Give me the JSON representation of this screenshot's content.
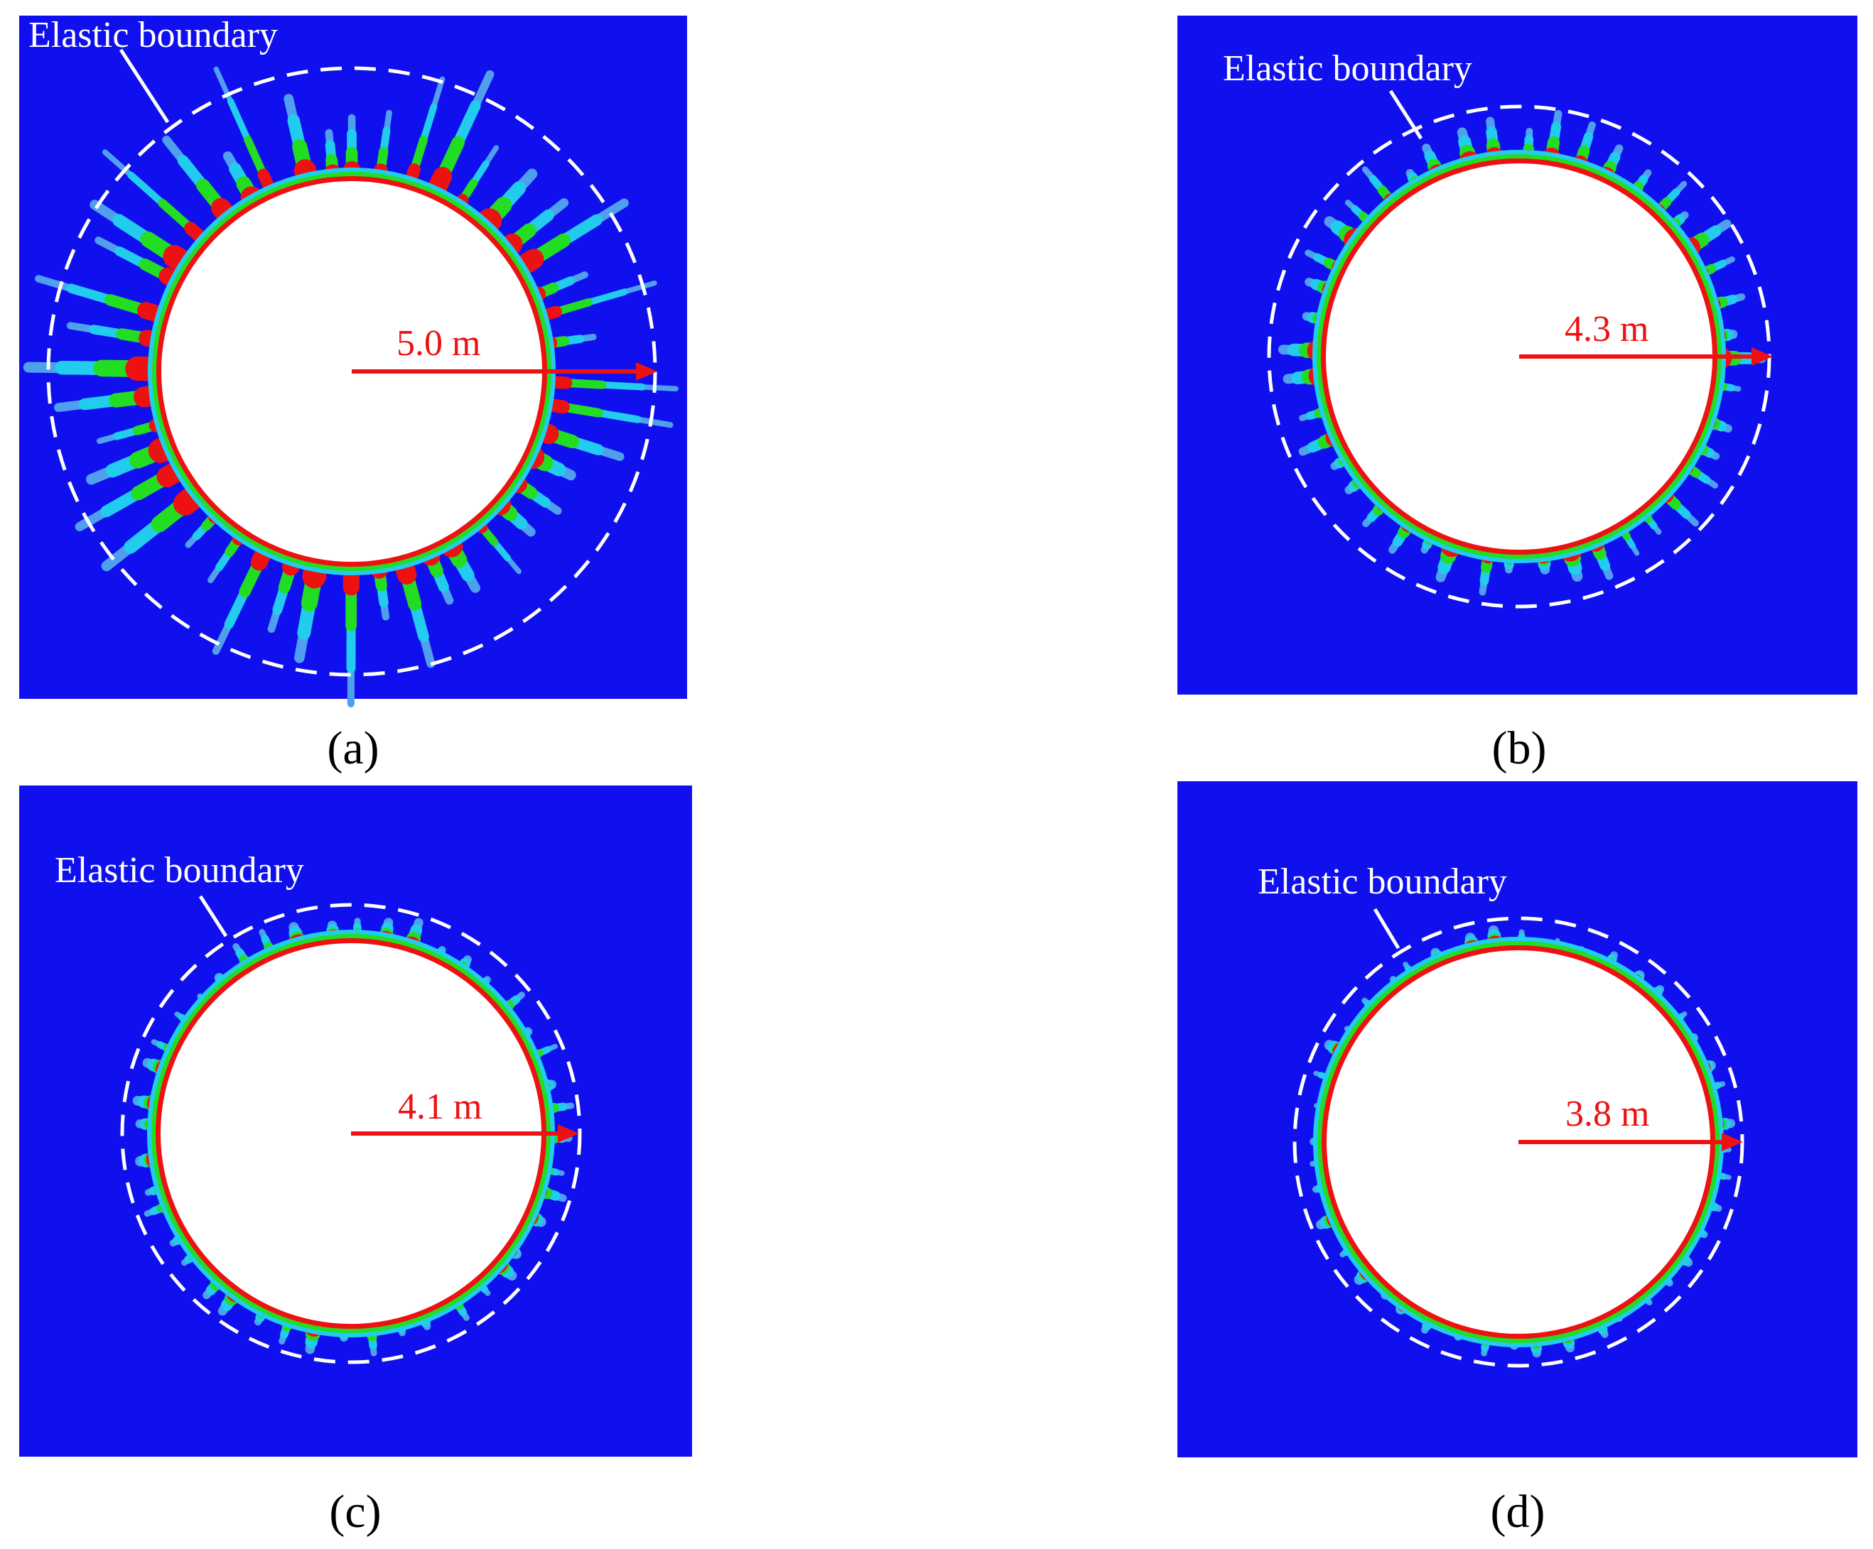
{
  "panels": [
    {
      "id": "a",
      "caption": "(a)",
      "boundary_label": "Elastic boundary",
      "radius_label": "5.0 m",
      "radius_value": 5.0,
      "ray_intensity": 1.0
    },
    {
      "id": "b",
      "caption": "(b)",
      "boundary_label": "Elastic boundary",
      "radius_label": "4.3 m",
      "radius_value": 4.3,
      "ray_intensity": 0.55
    },
    {
      "id": "c",
      "caption": "(c)",
      "boundary_label": "Elastic boundary",
      "radius_label": "4.1 m",
      "radius_value": 4.1,
      "ray_intensity": 0.35
    },
    {
      "id": "d",
      "caption": "(d)",
      "boundary_label": "Elastic boundary",
      "radius_label": "3.8 m",
      "radius_value": 3.8,
      "ray_intensity": 0.15
    }
  ],
  "colors": {
    "background": "#1010ee",
    "opening": "#ffffff",
    "boundary_dash": "#ffffff",
    "arrow": "#ee1111",
    "damage_high": "#ee1111",
    "damage_mid": "#22dd22",
    "damage_low": "#22ccee",
    "damage_faint": "#4f9fee",
    "caption_text": "#000000"
  }
}
